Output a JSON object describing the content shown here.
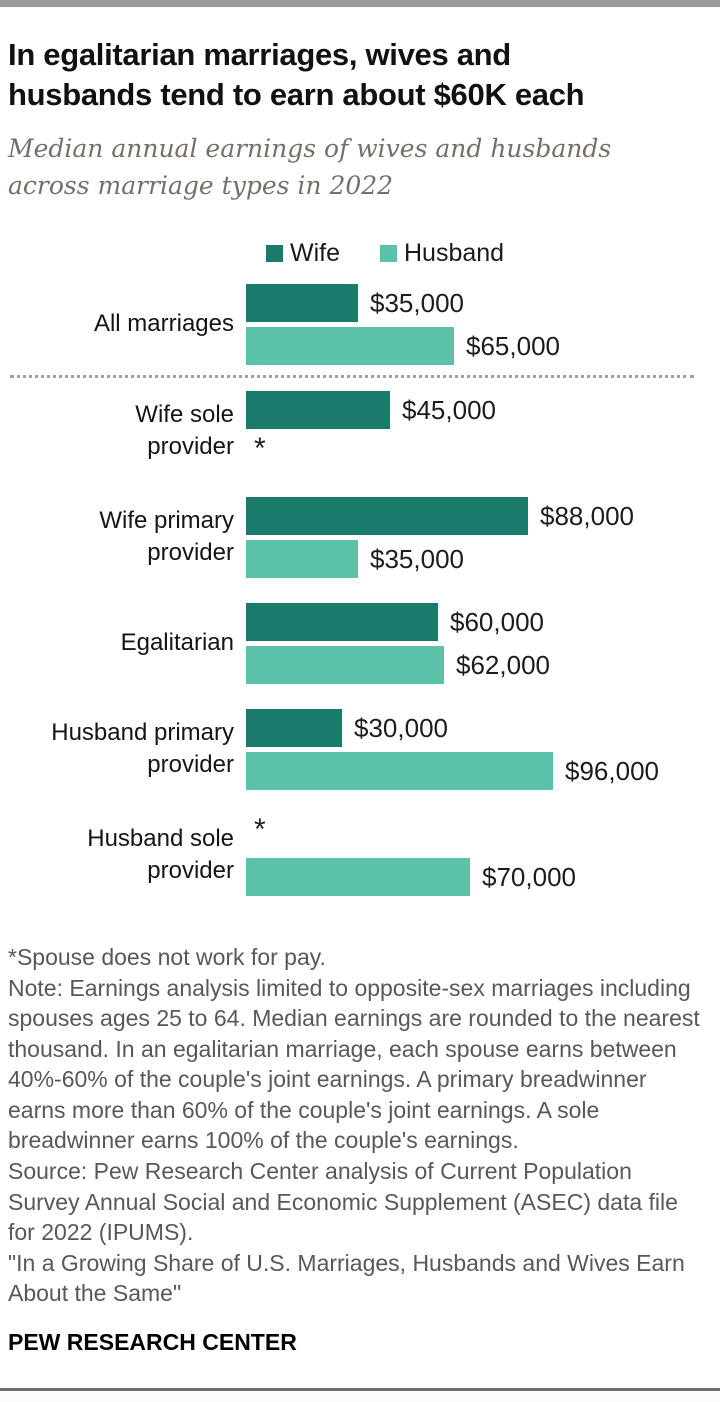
{
  "header": {
    "title": "In egalitarian marriages, wives and husbands tend to earn about $60K each",
    "subtitle": "Median annual earnings of wives and husbands across marriage types in 2022"
  },
  "legend": {
    "wife_label": "Wife",
    "husband_label": "Husband"
  },
  "colors": {
    "wife_bar": "#1a7a6b",
    "husband_bar": "#5cc1a9",
    "top_bar": "#9a9a9a",
    "note_text": "#58585a"
  },
  "chart_data": {
    "type": "bar",
    "orientation": "horizontal",
    "title": "In egalitarian marriages, wives and husbands tend to earn about $60K each",
    "subtitle": "Median annual earnings of wives and husbands across marriage types in 2022",
    "unit": "USD",
    "xlim": [
      0,
      100000
    ],
    "xmax": 100000,
    "grid": false,
    "legend_position": "top",
    "no_earnings_marker": "*",
    "no_earnings_meaning": "Spouse does not work for pay",
    "categories": [
      "All marriages",
      "Wife sole provider",
      "Wife primary provider",
      "Egalitarian",
      "Husband primary provider",
      "Husband sole provider"
    ],
    "series": [
      {
        "name": "Wife",
        "values": [
          35000,
          45000,
          88000,
          60000,
          30000,
          null
        ]
      },
      {
        "name": "Husband",
        "values": [
          65000,
          null,
          35000,
          62000,
          96000,
          70000
        ]
      }
    ],
    "rows": [
      {
        "category": "All marriages",
        "wife": 35000,
        "wife_label": "$35,000",
        "husband": 65000,
        "husband_label": "$65,000",
        "separator_after": true
      },
      {
        "category": "Wife sole provider",
        "wife": 45000,
        "wife_label": "$45,000",
        "husband": null,
        "husband_label": "*"
      },
      {
        "category": "Wife primary provider",
        "wife": 88000,
        "wife_label": "$88,000",
        "husband": 35000,
        "husband_label": "$35,000"
      },
      {
        "category": "Egalitarian",
        "wife": 60000,
        "wife_label": "$60,000",
        "husband": 62000,
        "husband_label": "$62,000"
      },
      {
        "category": "Husband primary provider",
        "wife": 30000,
        "wife_label": "$30,000",
        "husband": 96000,
        "husband_label": "$96,000"
      },
      {
        "category": "Husband sole provider",
        "wife": null,
        "wife_label": "*",
        "husband": 70000,
        "husband_label": "$70,000"
      }
    ]
  },
  "notes": {
    "footnote": "*Spouse does not work for pay.",
    "note": "Note: Earnings analysis limited to opposite-sex marriages including spouses ages 25 to 64. Median earnings are rounded to the nearest thousand. In an egalitarian marriage, each spouse earns between 40%-60% of the couple's joint earnings. A primary breadwinner earns more than 60% of the couple's joint earnings. A sole breadwinner earns 100% of the couple's earnings.",
    "source": "Source: Pew Research Center analysis of Current Population Survey Annual Social and Economic Supplement (ASEC) data file for 2022 (IPUMS).",
    "report": "\"In a Growing Share of U.S. Marriages, Husbands and Wives Earn About the Same\""
  },
  "footer": {
    "brand": "PEW RESEARCH CENTER"
  }
}
